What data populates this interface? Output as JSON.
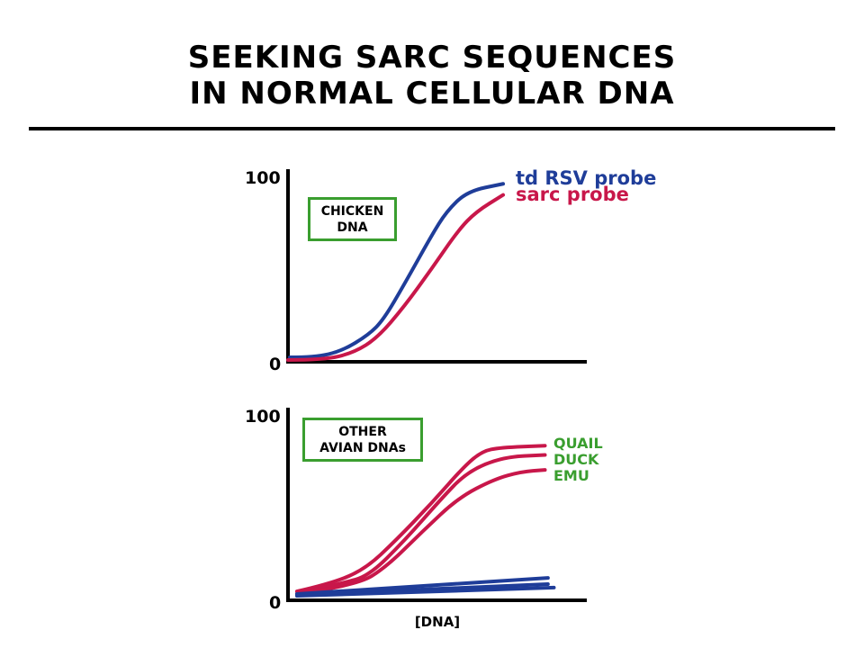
{
  "title": {
    "line1": "SEEKING SARC SEQUENCES",
    "line2": "IN NORMAL CELLULAR DNA"
  },
  "colors": {
    "blue": "#1f3d99",
    "red": "#c8174a",
    "green": "#3a9e2f"
  },
  "chart_data": [
    {
      "type": "line",
      "box_label": [
        "CHICKEN",
        "DNA"
      ],
      "ylim": [
        0,
        100
      ],
      "yticks": [
        "0",
        "100"
      ],
      "xlabel": "",
      "series": [
        {
          "name": "td RSV probe",
          "color": "#1f3d99",
          "points": [
            [
              0.06,
              2.4
            ],
            [
              0.9,
              2.4
            ],
            [
              1.8,
              5.8
            ],
            [
              2.7,
              14.6
            ],
            [
              3.2,
              22.8
            ],
            [
              3.9,
              42
            ],
            [
              4.8,
              68
            ],
            [
              5.3,
              81
            ],
            [
              6.0,
              92
            ],
            [
              7.2,
              96
            ]
          ]
        },
        {
          "name": "sarc probe",
          "color": "#c8174a",
          "points": [
            [
              0,
              1
            ],
            [
              1.2,
              1
            ],
            [
              2.2,
              4.9
            ],
            [
              3.0,
              13
            ],
            [
              3.9,
              30
            ],
            [
              4.8,
              50
            ],
            [
              5.7,
              71
            ],
            [
              6.3,
              81
            ],
            [
              7.2,
              90
            ]
          ]
        }
      ]
    },
    {
      "type": "line",
      "box_label": [
        "OTHER",
        "AVIAN DNAs"
      ],
      "ylim": [
        0,
        100
      ],
      "yticks": [
        "0",
        "100"
      ],
      "xlabel": "[DNA]",
      "series": [
        {
          "name": "QUAIL",
          "color": "#c8174a",
          "label_color": "#3a9e2f",
          "points": [
            [
              0.3,
              4.8
            ],
            [
              1.5,
              9.2
            ],
            [
              2.6,
              17
            ],
            [
              3.6,
              32
            ],
            [
              4.8,
              52
            ],
            [
              5.9,
              72
            ],
            [
              6.5,
              80
            ],
            [
              7.1,
              82
            ],
            [
              8.6,
              83
            ]
          ]
        },
        {
          "name": "DUCK",
          "color": "#c8174a",
          "label_color": "#3a9e2f",
          "points": [
            [
              0.3,
              3.4
            ],
            [
              1.8,
              9.2
            ],
            [
              2.7,
              13
            ],
            [
              3.9,
              32
            ],
            [
              5.1,
              54
            ],
            [
              6.0,
              69
            ],
            [
              7.2,
              77
            ],
            [
              8.6,
              78
            ]
          ]
        },
        {
          "name": "EMU",
          "color": "#c8174a",
          "label_color": "#3a9e2f",
          "points": [
            [
              0.3,
              3.4
            ],
            [
              2.3,
              8
            ],
            [
              3.3,
              18
            ],
            [
              4.5,
              37
            ],
            [
              5.7,
              55
            ],
            [
              6.9,
              65
            ],
            [
              7.8,
              69
            ],
            [
              8.6,
              70
            ]
          ]
        },
        {
          "color": "#1f3d99",
          "points": [
            [
              0.3,
              3.4
            ],
            [
              8.7,
              12
            ]
          ]
        },
        {
          "color": "#1f3d99",
          "points": [
            [
              0.3,
              2.9
            ],
            [
              8.7,
              8.7
            ]
          ]
        },
        {
          "color": "#1f3d99",
          "points": [
            [
              0.3,
              2.4
            ],
            [
              8.9,
              6.8
            ]
          ]
        }
      ]
    }
  ]
}
